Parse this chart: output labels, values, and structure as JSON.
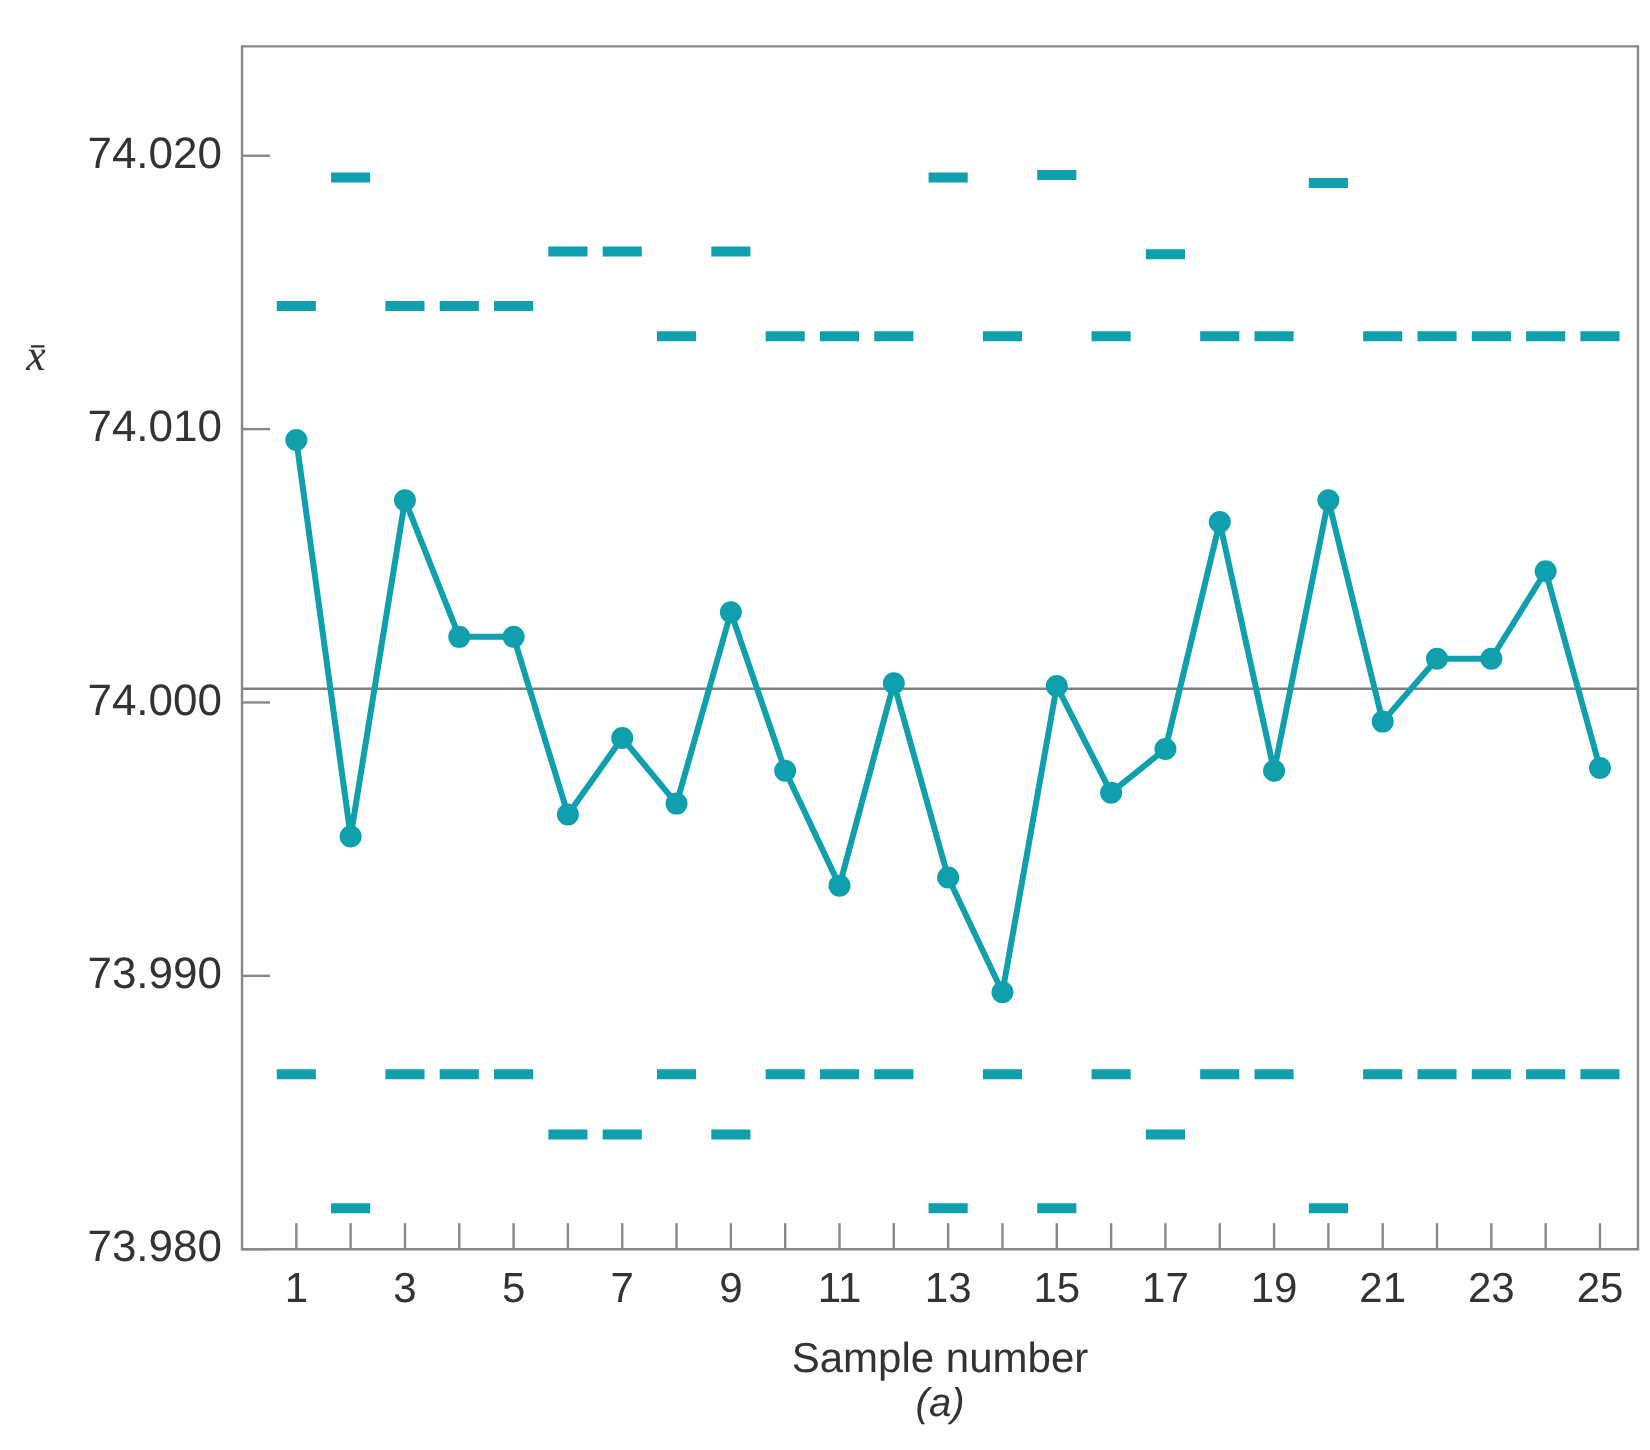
{
  "chart_data": {
    "type": "line",
    "xlabel": "Sample number",
    "ylabel": "x̄",
    "annotations": [
      "(a)"
    ],
    "x": [
      1,
      2,
      3,
      4,
      5,
      6,
      7,
      8,
      9,
      10,
      11,
      12,
      13,
      14,
      15,
      16,
      17,
      18,
      19,
      20,
      21,
      22,
      23,
      24,
      25
    ],
    "xlim": [
      0,
      25.7
    ],
    "xticks": [
      1,
      {
        "value": 2,
        "label": null
      },
      3,
      {
        "value": 4,
        "label": null
      },
      5,
      {
        "value": 6,
        "label": null
      },
      7,
      {
        "value": 8,
        "label": null
      },
      9,
      {
        "value": 10,
        "label": null
      },
      11,
      {
        "value": 12,
        "label": null
      },
      13,
      {
        "value": 14,
        "label": null
      },
      15,
      {
        "value": 16,
        "label": null
      },
      17,
      {
        "value": 18,
        "label": null
      },
      19,
      {
        "value": 20,
        "label": null
      },
      21,
      {
        "value": 22,
        "label": null
      },
      23,
      {
        "value": 24,
        "label": null
      },
      25
    ],
    "ylim": [
      73.98,
      74.024
    ],
    "yticks": [
      {
        "value": 73.98,
        "label": "73.980"
      },
      {
        "value": 73.99,
        "label": "73.990"
      },
      {
        "value": 74.0,
        "label": "74.000"
      },
      {
        "value": 74.01,
        "label": "74.010"
      },
      {
        "value": 74.02,
        "label": "74.020"
      }
    ],
    "ref_lines": [
      {
        "axis": "y",
        "value": 74.0005,
        "color": "#808080"
      }
    ],
    "series": [
      {
        "marker": "circle",
        "color": "#0f9fad",
        "values": [
          74.0096,
          73.9951,
          74.0074,
          74.0024,
          74.0024,
          73.9959,
          73.9987,
          73.9963,
          74.0033,
          73.9975,
          73.9933,
          74.0007,
          73.9936,
          73.9894,
          74.0006,
          73.9967,
          73.9983,
          74.0066,
          73.9975,
          74.0074,
          73.9993,
          74.0016,
          74.0016,
          74.0048,
          73.9976
        ]
      },
      {
        "marker": "none",
        "color": "#0f9fad",
        "x": [
          0.64,
          1.36,
          1.5,
          1.64,
          2.36,
          2.5,
          2.64,
          3.36,
          3.5,
          3.64,
          4.36,
          4.5,
          4.64,
          5.36,
          5.5,
          5.64,
          6.36,
          6.5,
          6.64,
          7.36,
          7.5,
          7.64,
          8.36,
          8.5,
          8.64,
          9.36,
          9.5,
          9.64,
          10.36,
          10.5,
          10.64,
          11.36,
          11.5,
          11.64,
          12.36,
          12.5,
          12.64,
          13.36,
          13.5,
          13.64,
          14.36,
          14.5,
          14.64,
          15.36,
          15.5,
          15.64,
          16.36,
          16.5,
          16.64,
          17.36,
          17.5,
          17.64,
          18.36,
          18.5,
          18.64,
          19.36,
          19.5,
          19.64,
          20.36,
          20.5,
          20.64,
          21.36,
          21.5,
          21.64,
          22.36,
          22.5,
          22.64,
          23.36,
          23.5,
          23.64,
          24.36,
          24.5,
          24.64,
          25.36
        ],
        "values": [
          74.0145,
          74.0145,
          null,
          74.0192,
          74.0192,
          null,
          74.0145,
          74.0145,
          null,
          74.0145,
          74.0145,
          null,
          74.0145,
          74.0145,
          null,
          74.0165,
          74.0165,
          null,
          74.0165,
          74.0165,
          null,
          74.0134,
          74.0134,
          null,
          74.0165,
          74.0165,
          null,
          74.0134,
          74.0134,
          null,
          74.0134,
          74.0134,
          null,
          74.0134,
          74.0134,
          null,
          74.0192,
          74.0192,
          null,
          74.0134,
          74.0134,
          null,
          74.0193,
          74.0193,
          null,
          74.0134,
          74.0134,
          null,
          74.0164,
          74.0164,
          null,
          74.0134,
          74.0134,
          null,
          74.0134,
          74.0134,
          null,
          74.019,
          74.019,
          null,
          74.0134,
          74.0134,
          null,
          74.0134,
          74.0134,
          null,
          74.0134,
          74.0134,
          null,
          74.0134,
          74.0134,
          null,
          74.0134,
          74.0134
        ]
      },
      {
        "marker": "none",
        "color": "#0f9fad",
        "x": [
          0.64,
          1.36,
          1.5,
          1.64,
          2.36,
          2.5,
          2.64,
          3.36,
          3.5,
          3.64,
          4.36,
          4.5,
          4.64,
          5.36,
          5.5,
          5.64,
          6.36,
          6.5,
          6.64,
          7.36,
          7.5,
          7.64,
          8.36,
          8.5,
          8.64,
          9.36,
          9.5,
          9.64,
          10.36,
          10.5,
          10.64,
          11.36,
          11.5,
          11.64,
          12.36,
          12.5,
          12.64,
          13.36,
          13.5,
          13.64,
          14.36,
          14.5,
          14.64,
          15.36,
          15.5,
          15.64,
          16.36,
          16.5,
          16.64,
          17.36,
          17.5,
          17.64,
          18.36,
          18.5,
          18.64,
          19.36,
          19.5,
          19.64,
          20.36,
          20.5,
          20.64,
          21.36,
          21.5,
          21.64,
          22.36,
          22.5,
          22.64,
          23.36,
          23.5,
          23.64,
          24.36,
          24.5,
          24.64,
          25.36
        ],
        "values": [
          73.9864,
          73.9864,
          null,
          73.9815,
          73.9815,
          null,
          73.9864,
          73.9864,
          null,
          73.9864,
          73.9864,
          null,
          73.9864,
          73.9864,
          null,
          73.9842,
          73.9842,
          null,
          73.9842,
          73.9842,
          null,
          73.9864,
          73.9864,
          null,
          73.9842,
          73.9842,
          null,
          73.9864,
          73.9864,
          null,
          73.9864,
          73.9864,
          null,
          73.9864,
          73.9864,
          null,
          73.9815,
          73.9815,
          null,
          73.9864,
          73.9864,
          null,
          73.9815,
          73.9815,
          null,
          73.9864,
          73.9864,
          null,
          73.9842,
          73.9842,
          null,
          73.9864,
          73.9864,
          null,
          73.9864,
          73.9864,
          null,
          73.9815,
          73.9815,
          null,
          73.9864,
          73.9864,
          null,
          73.9864,
          73.9864,
          null,
          73.9864,
          73.9864,
          null,
          73.9864,
          73.9864,
          null,
          73.9864,
          73.9864
        ]
      }
    ]
  }
}
